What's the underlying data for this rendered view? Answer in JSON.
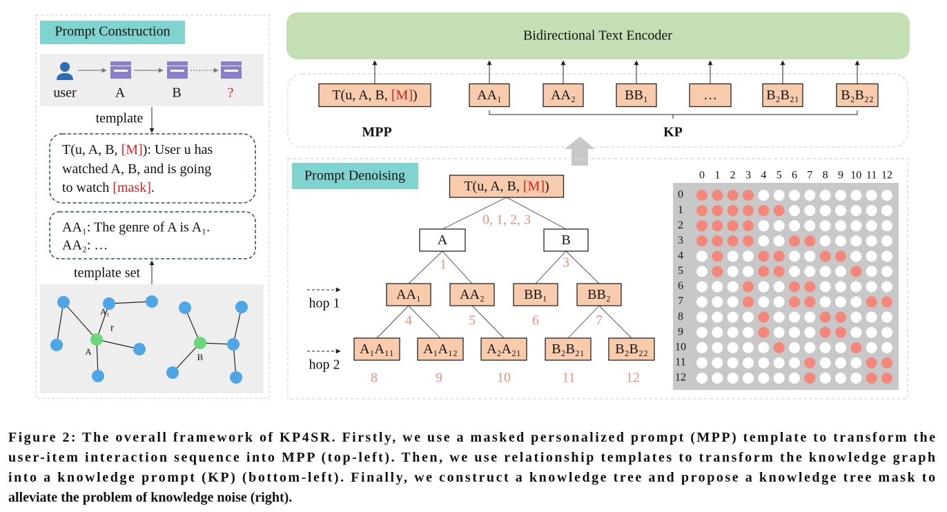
{
  "prompt_construction": {
    "title": "Prompt Construction",
    "sequence": [
      "user",
      "A",
      "B",
      "?"
    ],
    "template_label": "template",
    "template_lines": [
      [
        "T(u, A, B, ",
        "[M]",
        "): User u has"
      ],
      [
        "watched A, B,  and is going"
      ],
      [
        "to watch ",
        "[mask]",
        "."
      ]
    ],
    "kp_lines": [
      "AA₁: The genre of A is A₁.",
      "AA₂: …"
    ],
    "template_set_label": "template set",
    "graph_labels": [
      "A₁",
      "r",
      "A",
      "B"
    ]
  },
  "encoder": {
    "title": "Bidirectional Text Encoder",
    "tokens": [
      [
        "T(u, A, B, ",
        "[M]",
        ")"
      ],
      [
        "AA₁"
      ],
      [
        "AA₂"
      ],
      [
        "BB₁"
      ],
      [
        "…"
      ],
      [
        "B₂B₂₁"
      ],
      [
        "B₂B₂₂"
      ]
    ],
    "mpp_label": "MPP",
    "kp_label": "KP"
  },
  "denoising": {
    "title": "Prompt Denoising",
    "nodes": [
      {
        "label": [
          "T(u, A, B, ",
          "[M]",
          ")"
        ],
        "index": "0, 1, 2, 3"
      },
      {
        "label": [
          "A"
        ],
        "index": "1"
      },
      {
        "label": [
          "B"
        ],
        "index": "3"
      },
      {
        "label": [
          "AA₁"
        ],
        "index": "4"
      },
      {
        "label": [
          "AA₂"
        ],
        "index": "5"
      },
      {
        "label": [
          "BB₁"
        ],
        "index": "6"
      },
      {
        "label": [
          "BB₂"
        ],
        "index": "7"
      },
      {
        "label": [
          "A₁A₁₁"
        ],
        "index": "8"
      },
      {
        "label": [
          "A₁A₁₂"
        ],
        "index": "9"
      },
      {
        "label": [
          "A₂A₂₁"
        ],
        "index": "10"
      },
      {
        "label": [
          "B₂B₂₁"
        ],
        "index": "11"
      },
      {
        "label": [
          "B₂B₂₂"
        ],
        "index": "12"
      }
    ],
    "hops": [
      "hop 1",
      "hop 2"
    ],
    "mask": {
      "columns": [
        0,
        1,
        2,
        3,
        4,
        5,
        6,
        7,
        8,
        9,
        10,
        11,
        12
      ],
      "rows": [
        0,
        1,
        2,
        3,
        4,
        5,
        6,
        7,
        8,
        9,
        10,
        11,
        12
      ],
      "cells": [
        [
          1,
          1,
          1,
          1,
          0,
          0,
          0,
          0,
          0,
          0,
          0,
          0,
          0
        ],
        [
          1,
          1,
          1,
          1,
          1,
          1,
          0,
          0,
          0,
          0,
          0,
          0,
          0
        ],
        [
          1,
          1,
          1,
          1,
          0,
          0,
          0,
          0,
          0,
          0,
          0,
          0,
          0
        ],
        [
          1,
          1,
          1,
          1,
          0,
          0,
          1,
          1,
          0,
          0,
          0,
          0,
          0
        ],
        [
          0,
          1,
          0,
          0,
          1,
          1,
          0,
          0,
          1,
          1,
          0,
          0,
          0
        ],
        [
          0,
          1,
          0,
          0,
          1,
          1,
          0,
          0,
          0,
          0,
          1,
          0,
          0
        ],
        [
          0,
          0,
          0,
          1,
          0,
          0,
          1,
          1,
          0,
          0,
          0,
          0,
          0
        ],
        [
          0,
          0,
          0,
          1,
          0,
          0,
          1,
          1,
          0,
          0,
          0,
          1,
          1
        ],
        [
          0,
          0,
          0,
          0,
          1,
          0,
          0,
          0,
          1,
          1,
          0,
          0,
          0
        ],
        [
          0,
          0,
          0,
          0,
          1,
          0,
          0,
          0,
          1,
          1,
          0,
          0,
          0
        ],
        [
          0,
          0,
          0,
          0,
          0,
          1,
          0,
          0,
          0,
          0,
          1,
          0,
          0
        ],
        [
          0,
          0,
          0,
          0,
          0,
          0,
          0,
          1,
          0,
          0,
          0,
          1,
          1
        ],
        [
          0,
          0,
          0,
          0,
          0,
          0,
          0,
          1,
          0,
          0,
          0,
          1,
          1
        ]
      ]
    }
  },
  "caption": [
    "Figure 2: The overall framework of KP4SR. Firstly, we use a masked personalized prompt (MPP) template to transform the",
    "user-item interaction sequence into MPP (top-left). Then, we use relationship templates to transform the knowledge graph",
    "into a knowledge prompt (KP) (bottom-left). Finally, we construct a knowledge tree and propose a knowledge tree mask to",
    "alleviate the problem of knowledge noise (right)."
  ]
}
